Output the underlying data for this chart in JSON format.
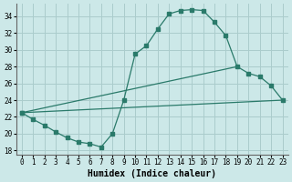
{
  "xlabel": "Humidex (Indice chaleur)",
  "background_color": "#cce8e8",
  "grid_color": "#aacccc",
  "line_color": "#2a7a6a",
  "xlim": [
    -0.5,
    23.5
  ],
  "ylim": [
    17.5,
    35.5
  ],
  "yticks": [
    18,
    20,
    22,
    24,
    26,
    28,
    30,
    32,
    34
  ],
  "xticks": [
    0,
    1,
    2,
    3,
    4,
    5,
    6,
    7,
    8,
    9,
    10,
    11,
    12,
    13,
    14,
    15,
    16,
    17,
    18,
    19,
    20,
    21,
    22,
    23
  ],
  "curve1_x": [
    0,
    1,
    2,
    3,
    4,
    5,
    6,
    7,
    8,
    9,
    10,
    11,
    12,
    13,
    14,
    15,
    16,
    17,
    18
  ],
  "curve1_y": [
    22.5,
    21.7,
    21.0,
    20.2,
    19.5,
    19.0,
    18.8,
    18.4,
    20.0,
    24.0,
    29.5,
    30.5,
    32.5,
    34.3,
    34.7,
    34.8,
    34.7,
    33.3,
    31.7
  ],
  "curve2_x": [
    0,
    19,
    20,
    21,
    22,
    23
  ],
  "curve2_y": [
    22.5,
    28.0,
    27.2,
    26.8,
    25.7,
    24.0
  ],
  "curve3_x": [
    0,
    23
  ],
  "curve3_y": [
    22.5,
    24.0
  ],
  "font_family": "monospace",
  "label_fontsize": 7,
  "tick_fontsize": 5.5
}
